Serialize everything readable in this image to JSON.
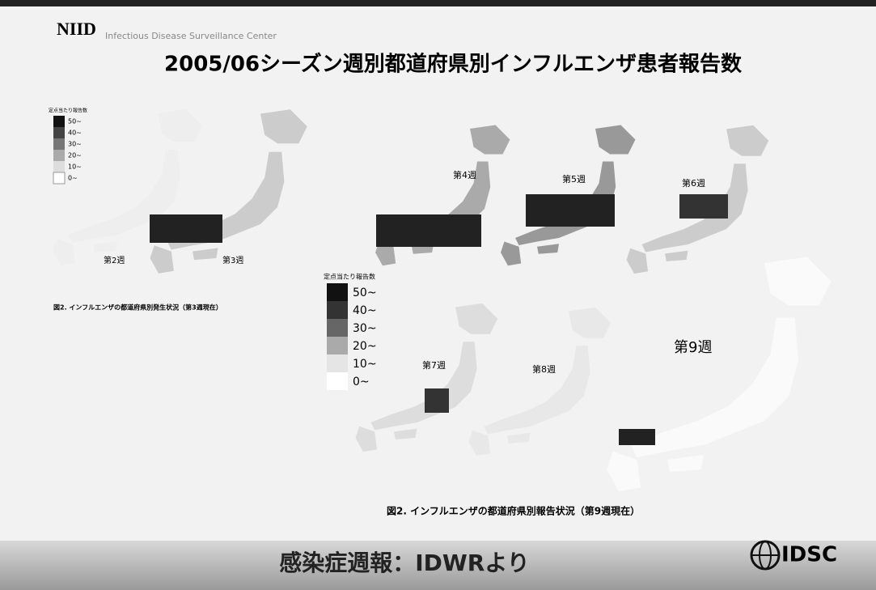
{
  "header": {
    "logo": "NIID",
    "center": "Infectious Disease Surveillance Center",
    "title": "2005/06シーズン週別都道府県別インフルエンザ患者報告数"
  },
  "legend_small": {
    "title": "定点当たり報告数",
    "labels": [
      "50~",
      "40~",
      "30~",
      "20~",
      "10~",
      "0~"
    ]
  },
  "legend_large": {
    "title": "定点当たり報告数",
    "labels": [
      "50~",
      "40~",
      "30~",
      "20~",
      "10~",
      "0~"
    ]
  },
  "weeks": [
    "第2週",
    "第3週",
    "第4週",
    "第5週",
    "第6週",
    "第7週",
    "第8週",
    "第9週"
  ],
  "captions": [
    "図2. インフルエンザの都道府県別発生状況（第3週現在）",
    "図2. インフルエンザの都道府県別報告状況（第9週現在）"
  ],
  "footer": {
    "source": "感染症週報：IDWRより",
    "brand": "IDSC"
  }
}
